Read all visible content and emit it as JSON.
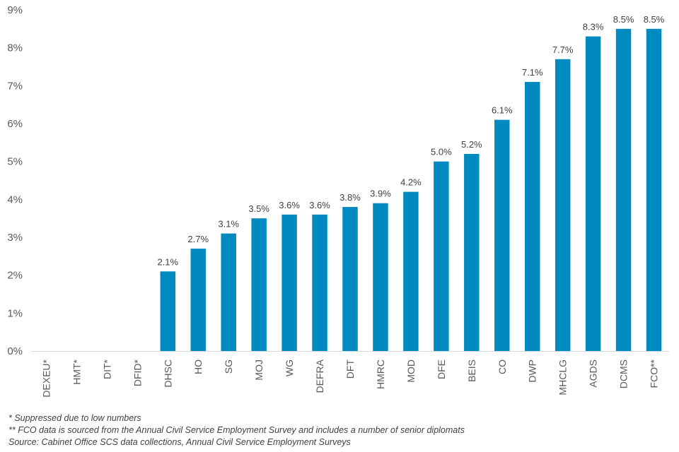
{
  "chart_data": {
    "type": "bar",
    "categories": [
      "DEXEU*",
      "HMT*",
      "DIT*",
      "DFID*",
      "DHSC",
      "HO",
      "SG",
      "MOJ",
      "WG",
      "DEFRA",
      "DFT",
      "HMRC",
      "MOD",
      "DFE",
      "BEIS",
      "CO",
      "DWP",
      "MHCLG",
      "AGDS",
      "DCMS",
      "FCO**"
    ],
    "values": [
      null,
      null,
      null,
      null,
      2.1,
      2.7,
      3.1,
      3.5,
      3.6,
      3.6,
      3.8,
      3.9,
      4.2,
      5.0,
      5.2,
      6.1,
      7.1,
      7.7,
      8.3,
      8.5,
      8.5
    ],
    "data_labels": [
      "",
      "",
      "",
      "",
      "2.1%",
      "2.7%",
      "3.1%",
      "3.5%",
      "3.6%",
      "3.6%",
      "3.8%",
      "3.9%",
      "4.2%",
      "5.0%",
      "5.2%",
      "6.1%",
      "7.1%",
      "7.7%",
      "8.3%",
      "8.5%",
      "8.5%"
    ],
    "yticks": [
      "0%",
      "1%",
      "2%",
      "3%",
      "4%",
      "5%",
      "6%",
      "7%",
      "8%",
      "9%"
    ],
    "ylim": [
      0,
      9
    ],
    "grid": false,
    "legend": "none",
    "title": "",
    "xlabel": "",
    "ylabel": "",
    "bar_color": "#008ABF"
  },
  "footnotes": [
    "* Suppressed due to low numbers",
    "** FCO data is sourced from the Annual Civil Service Employment Survey and includes a number of senior diplomats",
    "Source: Cabinet Office SCS data collections, Annual Civil Service Employment Surveys"
  ]
}
